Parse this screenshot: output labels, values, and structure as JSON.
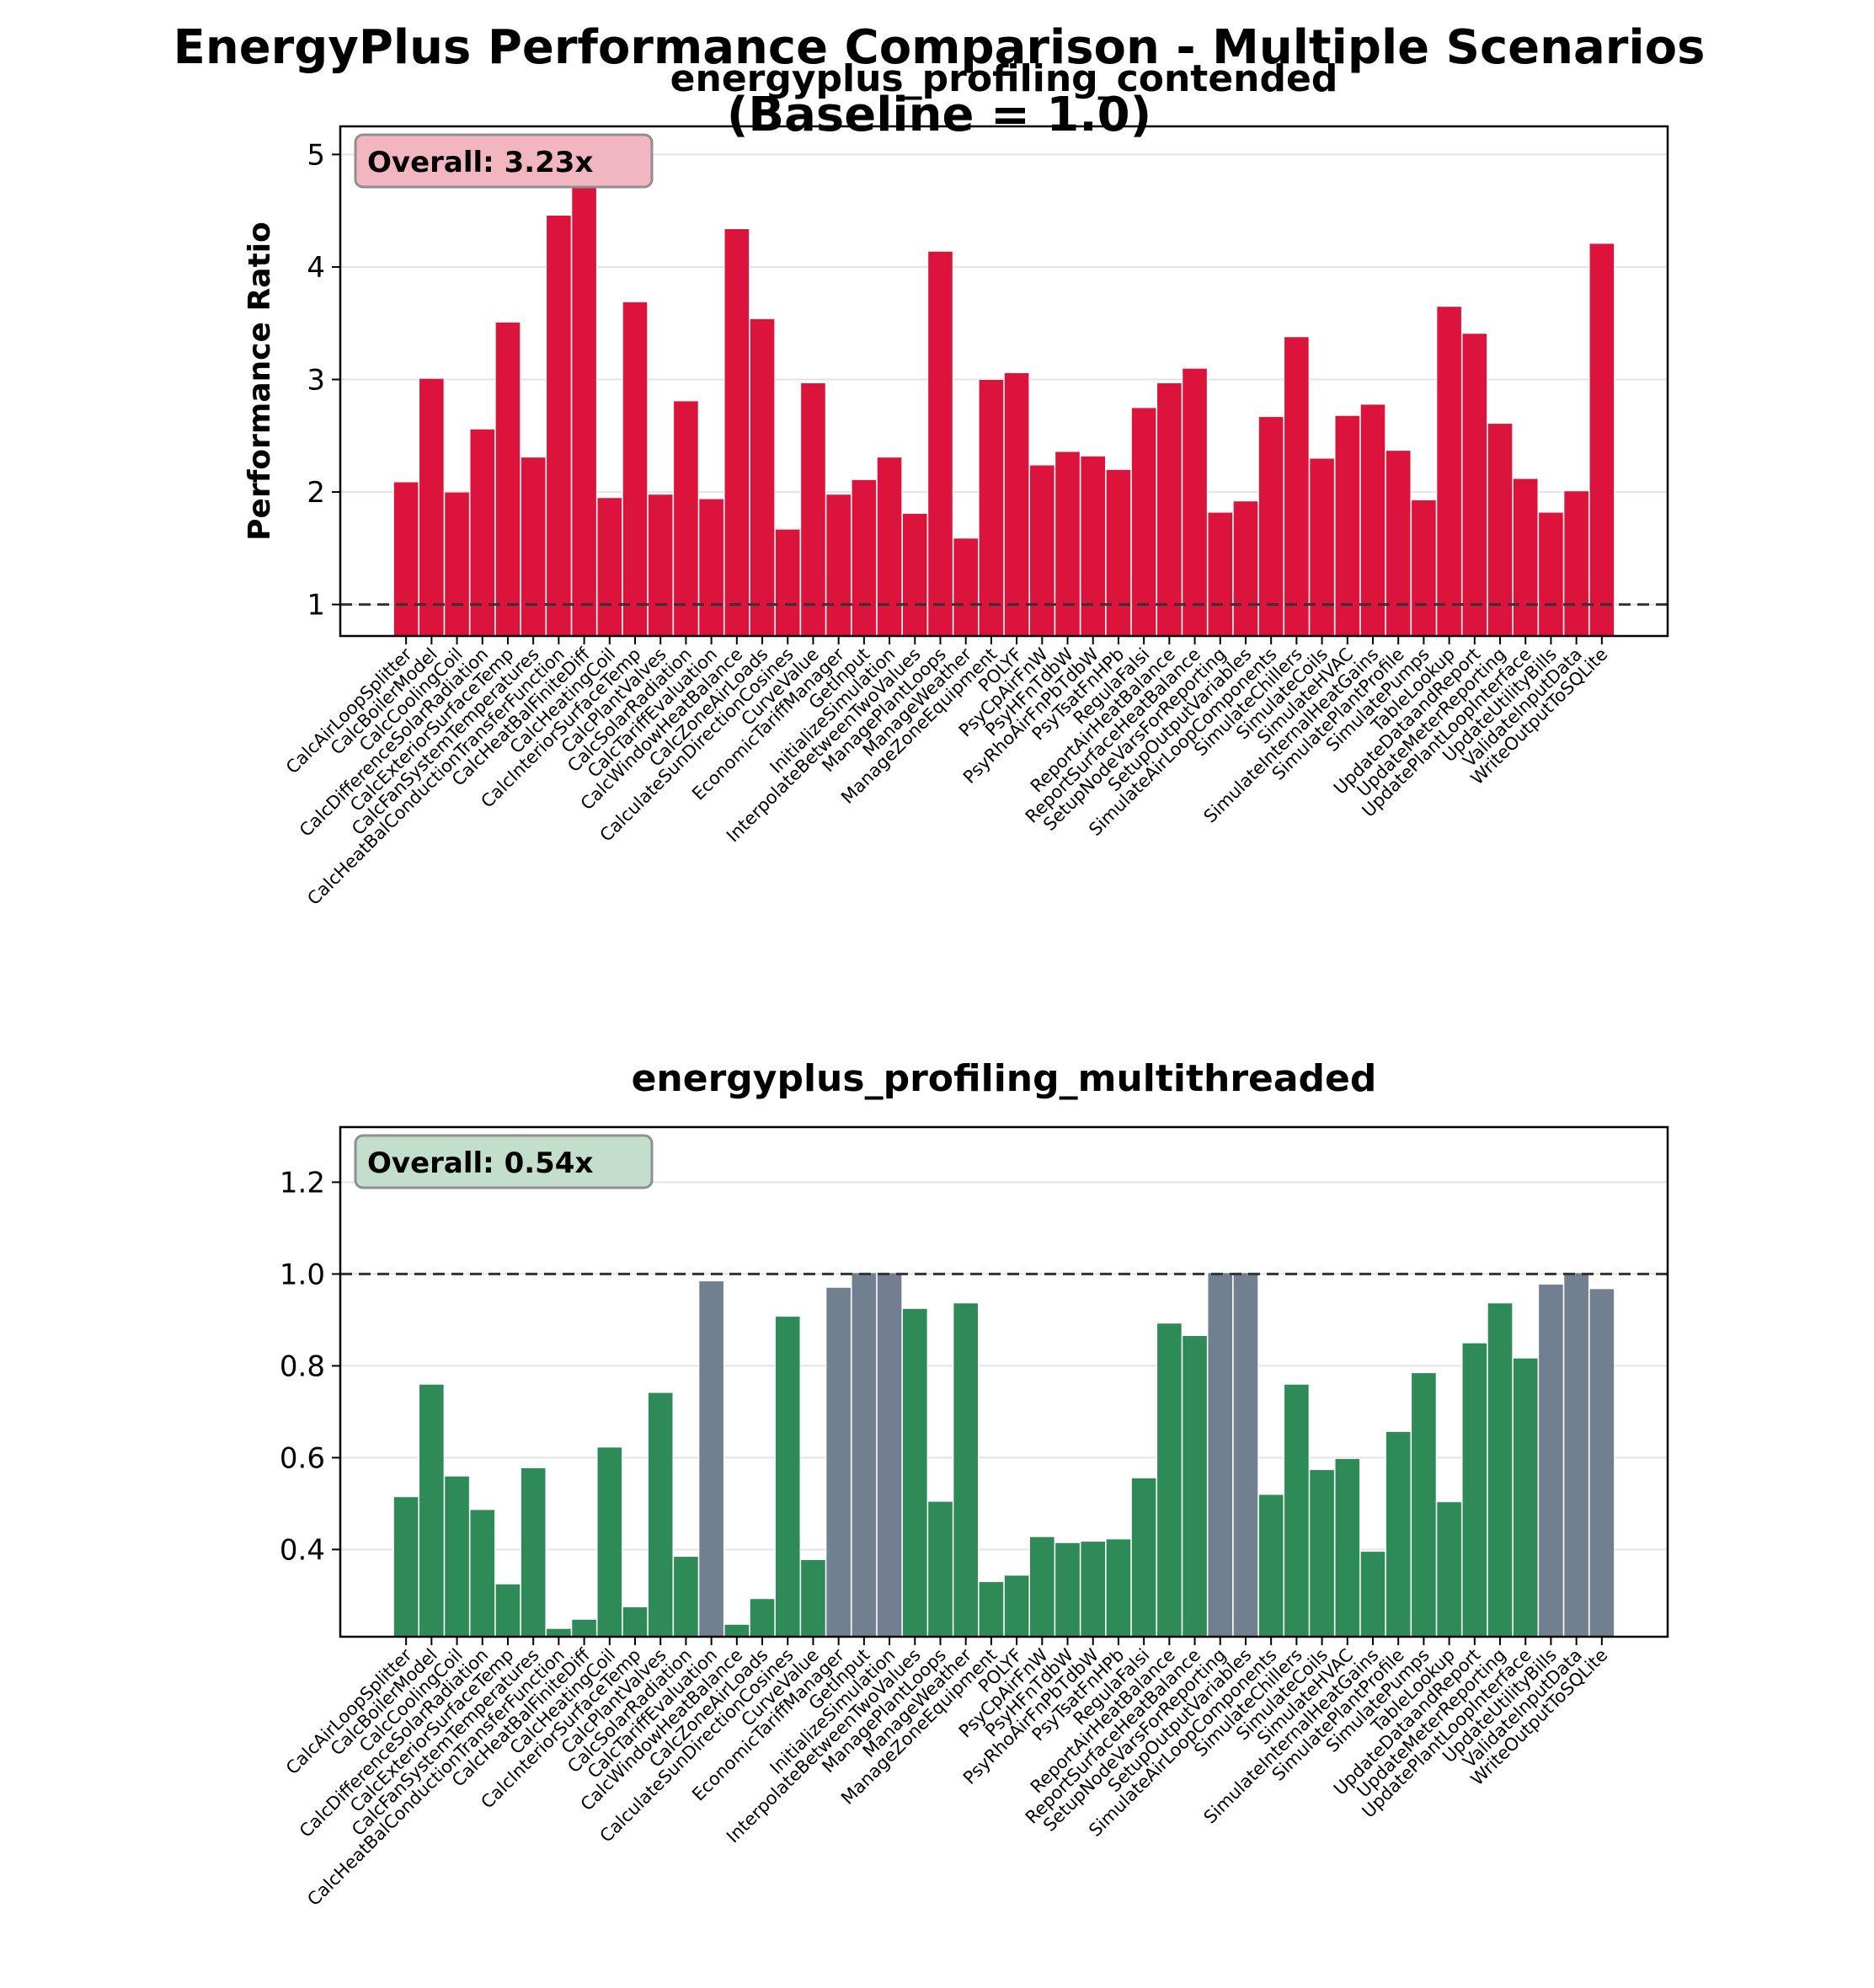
{
  "figure": {
    "suptitle_line1": "EnergyPlus Performance Comparison - Multiple Scenarios",
    "suptitle_line2": "(Baseline = 1.0)"
  },
  "chart_data": [
    {
      "type": "bar",
      "title": "energyplus_profiling_contended",
      "ylabel": "Performance Ratio",
      "xlabel": "",
      "ylim": [
        0.72,
        5.25
      ],
      "yticks": [
        1,
        2,
        3,
        4,
        5
      ],
      "ytick_labels": [
        "1",
        "2",
        "3",
        "4",
        "5"
      ],
      "baseline": 1.0,
      "overall_label": "Overall: 3.23x",
      "badge_color": "#f2b6c0",
      "grid": "horizontal",
      "categories": [
        "CalcAirLoopSplitter",
        "CalcBoilerModel",
        "CalcCoolingCoil",
        "CalcDifferenceSolarRadiation",
        "CalcExteriorSurfaceTemp",
        "CalcFanSystemTemperatures",
        "CalcHeatBalConductionTransferFunction",
        "CalcHeatBalFiniteDiff",
        "CalcHeatingCoil",
        "CalcInteriorSurfaceTemp",
        "CalcPlantValves",
        "CalcSolarRadiation",
        "CalcTariffEvaluation",
        "CalcWindowHeatBalance",
        "CalcZoneAirLoads",
        "CalculateSunDirectionCosines",
        "CurveValue",
        "EconomicTariffManager",
        "GetInput",
        "InitializeSimulation",
        "InterpolateBetweenTwoValues",
        "ManagePlantLoops",
        "ManageWeather",
        "ManageZoneEquipment",
        "POLYF",
        "PsyCpAirFnW",
        "PsyHFnTdbW",
        "PsyRhoAirFnPbTdbW",
        "PsyTsatFnHPb",
        "RegulaFalsi",
        "ReportAirHeatBalance",
        "ReportSurfaceHeatBalance",
        "SetupNodeVarsForReporting",
        "SetupOutputVariables",
        "SimulateAirLoopComponents",
        "SimulateChillers",
        "SimulateCoils",
        "SimulateHVAC",
        "SimulateInternalHeatGains",
        "SimulatePlantProfile",
        "SimulatePumps",
        "TableLookup",
        "UpdateDataandReport",
        "UpdateMeterReporting",
        "UpdatePlantLoopInterface",
        "UpdateUtilityBills",
        "ValidateInputData",
        "WriteOutputToSQLite"
      ],
      "values": [
        2.09,
        3.01,
        2.0,
        2.56,
        3.51,
        2.31,
        4.46,
        4.78,
        1.95,
        3.69,
        1.98,
        2.81,
        1.94,
        4.34,
        3.54,
        1.67,
        2.97,
        1.98,
        2.11,
        2.31,
        1.81,
        4.14,
        1.59,
        3.0,
        3.06,
        2.24,
        2.36,
        2.32,
        2.2,
        2.75,
        2.97,
        3.1,
        1.82,
        1.92,
        2.67,
        3.38,
        2.3,
        2.68,
        2.78,
        2.37,
        1.93,
        3.65,
        3.41,
        2.61,
        2.12,
        1.82,
        2.01,
        4.21
      ],
      "colors": [
        "#dc143c"
      ]
    },
    {
      "type": "bar",
      "title": "energyplus_profiling_multithreaded",
      "ylabel": "",
      "xlabel": "",
      "ylim": [
        0.21,
        1.32
      ],
      "yticks": [
        0.4,
        0.6,
        0.8,
        1.0,
        1.2
      ],
      "ytick_labels": [
        "0.4",
        "0.6",
        "0.8",
        "1.0",
        "1.2"
      ],
      "baseline": 1.0,
      "overall_label": "Overall: 0.54x",
      "badge_color": "#c3decb",
      "grid": "horizontal",
      "categories": [
        "CalcAirLoopSplitter",
        "CalcBoilerModel",
        "CalcCoolingCoil",
        "CalcDifferenceSolarRadiation",
        "CalcExteriorSurfaceTemp",
        "CalcFanSystemTemperatures",
        "CalcHeatBalConductionTransferFunction",
        "CalcHeatBalFiniteDiff",
        "CalcHeatingCoil",
        "CalcInteriorSurfaceTemp",
        "CalcPlantValves",
        "CalcSolarRadiation",
        "CalcTariffEvaluation",
        "CalcWindowHeatBalance",
        "CalcZoneAirLoads",
        "CalculateSunDirectionCosines",
        "CurveValue",
        "EconomicTariffManager",
        "GetInput",
        "InitializeSimulation",
        "InterpolateBetweenTwoValues",
        "ManagePlantLoops",
        "ManageWeather",
        "ManageZoneEquipment",
        "POLYF",
        "PsyCpAirFnW",
        "PsyHFnTdbW",
        "PsyRhoAirFnPbTdbW",
        "PsyTsatFnHPb",
        "RegulaFalsi",
        "ReportAirHeatBalance",
        "ReportSurfaceHeatBalance",
        "SetupNodeVarsForReporting",
        "SetupOutputVariables",
        "SimulateAirLoopComponents",
        "SimulateChillers",
        "SimulateCoils",
        "SimulateHVAC",
        "SimulateInternalHeatGains",
        "SimulatePlantProfile",
        "SimulatePumps",
        "TableLookup",
        "UpdateDataandReport",
        "UpdateMeterReporting",
        "UpdatePlantLoopInterface",
        "UpdateUtilityBills",
        "ValidateInputData",
        "WriteOutputToSQLite"
      ],
      "values": [
        0.515,
        0.76,
        0.56,
        0.487,
        0.325,
        0.578,
        0.228,
        0.248,
        0.623,
        0.275,
        0.742,
        0.385,
        0.985,
        0.237,
        0.293,
        0.908,
        0.378,
        0.971,
        1.003,
        1.003,
        0.925,
        0.505,
        0.937,
        0.33,
        0.344,
        0.428,
        0.415,
        0.418,
        0.423,
        0.556,
        0.893,
        0.866,
        1.003,
        1.003,
        0.52,
        0.76,
        0.574,
        0.598,
        0.396,
        0.657,
        0.785,
        0.504,
        0.85,
        0.937,
        0.817,
        0.978,
        1.003,
        0.968
      ],
      "colors": [
        "#2e8b57",
        "#708090"
      ],
      "color_rule": "bars with ratio near 1.0 (≥ 0.95) shown in slate gray, others in sea green"
    }
  ]
}
